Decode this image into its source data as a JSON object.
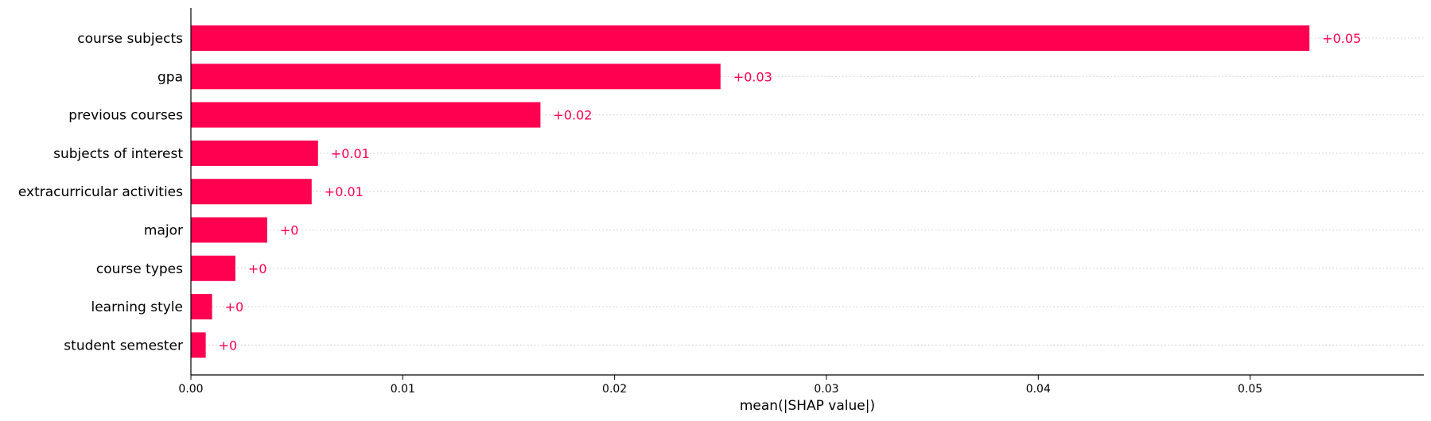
{
  "chart_data": {
    "type": "bar",
    "orientation": "horizontal",
    "categories": [
      "course subjects",
      "gpa",
      "previous courses",
      "subjects of interest",
      "extracurricular activities",
      "major",
      "course types",
      "learning style",
      "student semester"
    ],
    "values": [
      0.0528,
      0.025,
      0.0165,
      0.006,
      0.0057,
      0.0036,
      0.0021,
      0.001,
      0.0007
    ],
    "value_labels": [
      "+0.05",
      "+0.03",
      "+0.02",
      "+0.01",
      "+0.01",
      "+0",
      "+0",
      "+0",
      "+0"
    ],
    "xlabel": "mean(|SHAP value|)",
    "xlim": [
      0,
      0.0582
    ],
    "xticks": [
      0.0,
      0.01,
      0.02,
      0.03,
      0.04,
      0.05
    ],
    "xtick_labels": [
      "0.00",
      "0.01",
      "0.02",
      "0.03",
      "0.04",
      "0.05"
    ],
    "grid": "horizontal dotted row guides",
    "bar_color": "#ff0051",
    "label_color": "#ff0051"
  }
}
